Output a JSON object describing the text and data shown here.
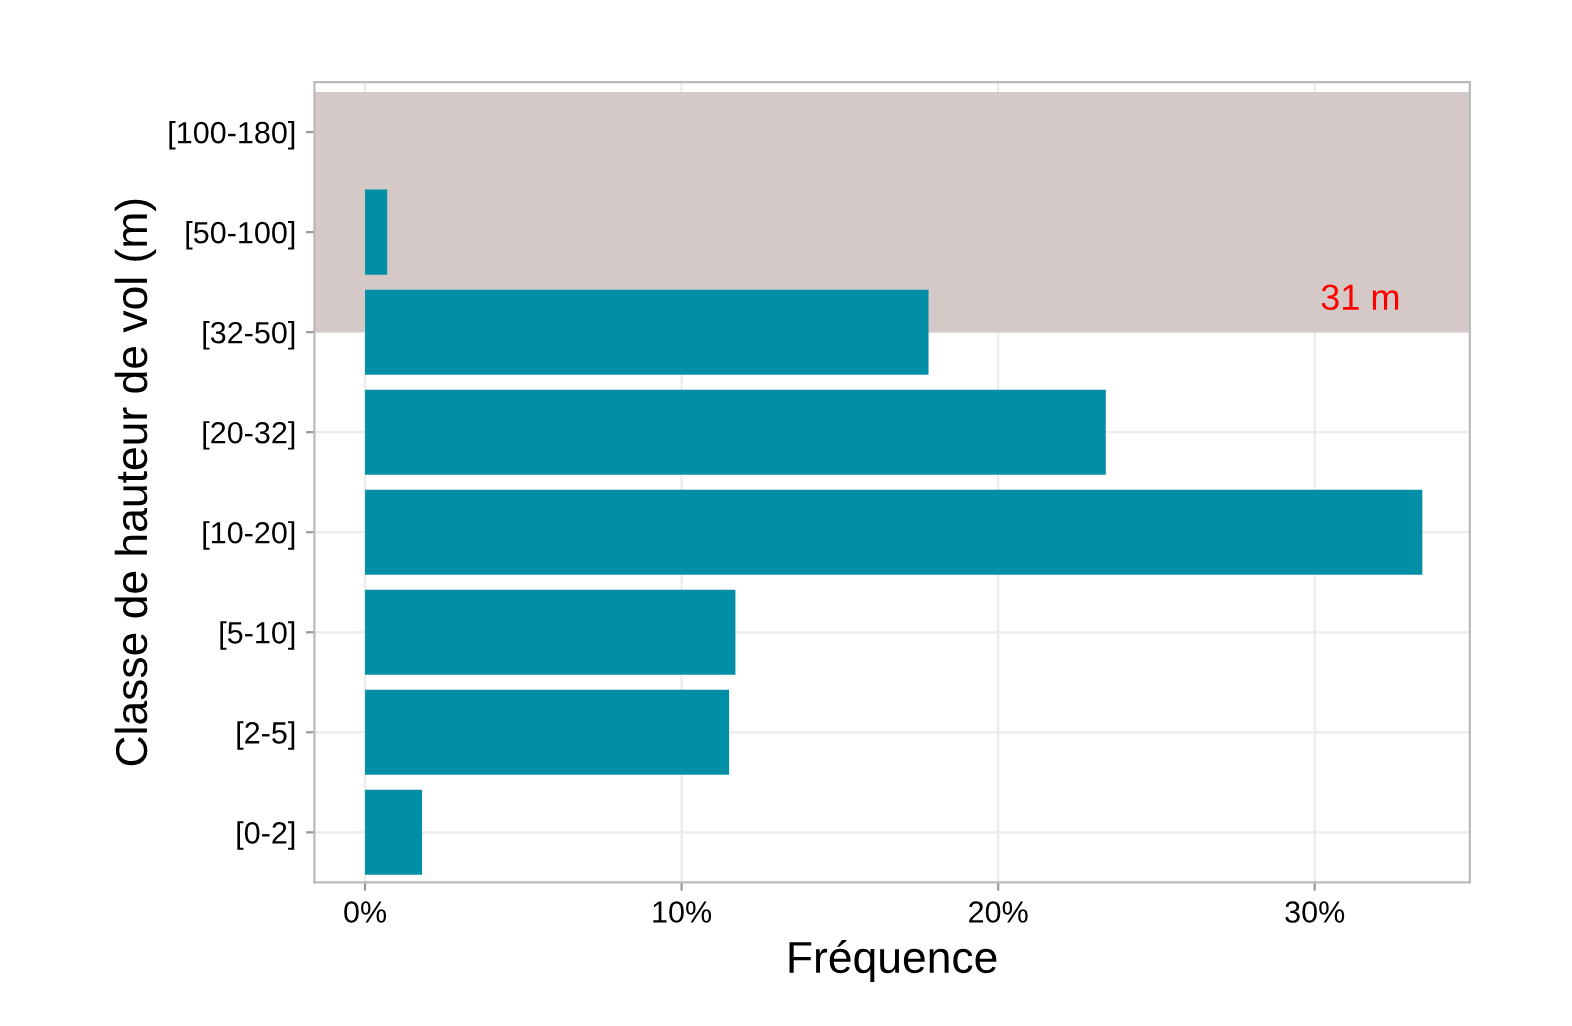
{
  "chart_data": {
    "type": "bar",
    "orientation": "horizontal",
    "xlabel": "Fréquence",
    "ylabel": "Classe de hauteur de vol (m)",
    "categories": [
      "[100-180]",
      "[50-100]",
      "[32-50]",
      "[20-32]",
      "[10-20]",
      "[5-10]",
      "[2-5]",
      "[0-2]"
    ],
    "values": [
      0,
      0.7,
      17.8,
      23.4,
      33.4,
      11.7,
      11.5,
      1.8
    ],
    "color": "#008fa6",
    "xlim": [
      -1.6,
      34.9
    ],
    "xticks": [
      {
        "value": 0,
        "label": "0%"
      },
      {
        "value": 10,
        "label": "10%"
      },
      {
        "value": 20,
        "label": "20%"
      },
      {
        "value": 30,
        "label": "30%"
      }
    ],
    "bands": [
      {
        "axis": "y",
        "from": "[100-180]",
        "to": "[32-50]",
        "label": "31 m",
        "color": "#d5c9c7"
      }
    ],
    "grid": true
  }
}
